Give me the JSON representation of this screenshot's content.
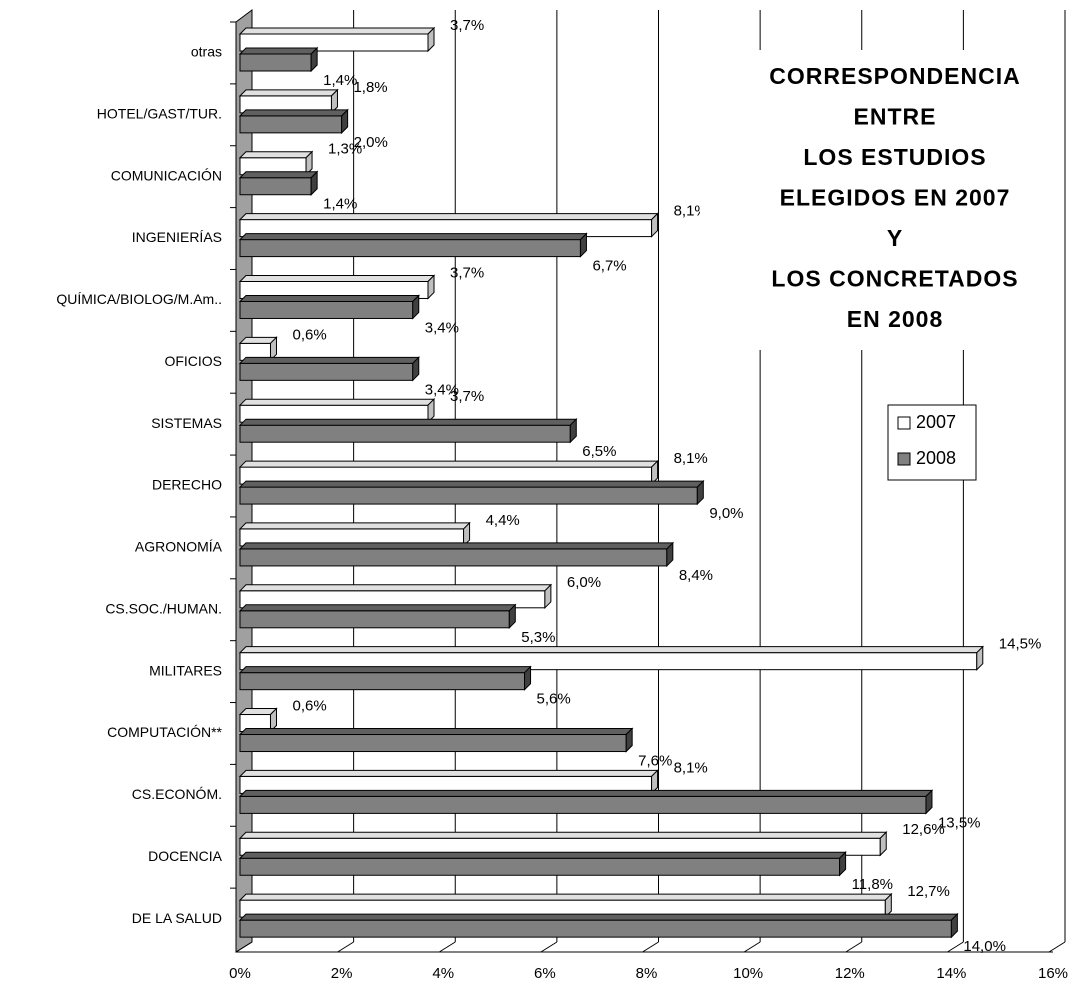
{
  "chart_data": {
    "type": "bar",
    "orientation": "horizontal",
    "title": [
      "CORRESPONDENCIA",
      "ENTRE",
      "LOS ESTUDIOS",
      "ELEGIDOS EN 2007",
      "Y",
      "LOS CONCRETADOS",
      "EN 2008"
    ],
    "categories": [
      "otras",
      "HOTEL/GAST/TUR.",
      "COMUNICACIÓN",
      "INGENIERÍAS",
      "QUÍMICA/BIOLOG/M.Am..",
      "OFICIOS",
      "SISTEMAS",
      "DERECHO",
      "AGRONOMÍA",
      "CS.SOC./HUMAN.",
      "MILITARES",
      "COMPUTACIÓN**",
      "CS.ECONÓM.",
      "DOCENCIA",
      "DE LA SALUD"
    ],
    "series": [
      {
        "name": "2007",
        "color": "#ffffff",
        "values": [
          3.7,
          1.8,
          1.3,
          8.1,
          3.7,
          0.6,
          3.7,
          8.1,
          4.4,
          6.0,
          14.5,
          0.6,
          8.1,
          12.6,
          12.7
        ],
        "value_labels": [
          "3,7%",
          "1,8%",
          "1,3%",
          "8,1%",
          "3,7%",
          "0,6%",
          "3,7%",
          "8,1%",
          "4,4%",
          "6,0%",
          "14,5%",
          "0,6%",
          "8,1%",
          "12,6%",
          "12,7%"
        ]
      },
      {
        "name": "2008",
        "color": "#808080",
        "values": [
          1.4,
          2.0,
          1.4,
          6.7,
          3.4,
          3.4,
          6.5,
          9.0,
          8.4,
          5.3,
          5.6,
          7.6,
          13.5,
          11.8,
          14.0
        ],
        "value_labels": [
          "1,4%",
          "2,0%",
          "1,4%",
          "6,7%",
          "3,4%",
          "3,4%",
          "6,5%",
          "9,0%",
          "8,4%",
          "5,3%",
          "5,6%",
          "7,6%",
          "13,5%",
          "11,8%",
          "14,0%"
        ]
      }
    ],
    "xlim": [
      0,
      16
    ],
    "xticks": [
      {
        "value": 0,
        "label": "0%"
      },
      {
        "value": 2,
        "label": "2%"
      },
      {
        "value": 4,
        "label": "4%"
      },
      {
        "value": 6,
        "label": "6%"
      },
      {
        "value": 8,
        "label": "8%"
      },
      {
        "value": 10,
        "label": "10%"
      },
      {
        "value": 12,
        "label": "12%"
      },
      {
        "value": 14,
        "label": "14%"
      },
      {
        "value": 16,
        "label": "16%"
      }
    ],
    "grid": true,
    "legend": "right"
  }
}
